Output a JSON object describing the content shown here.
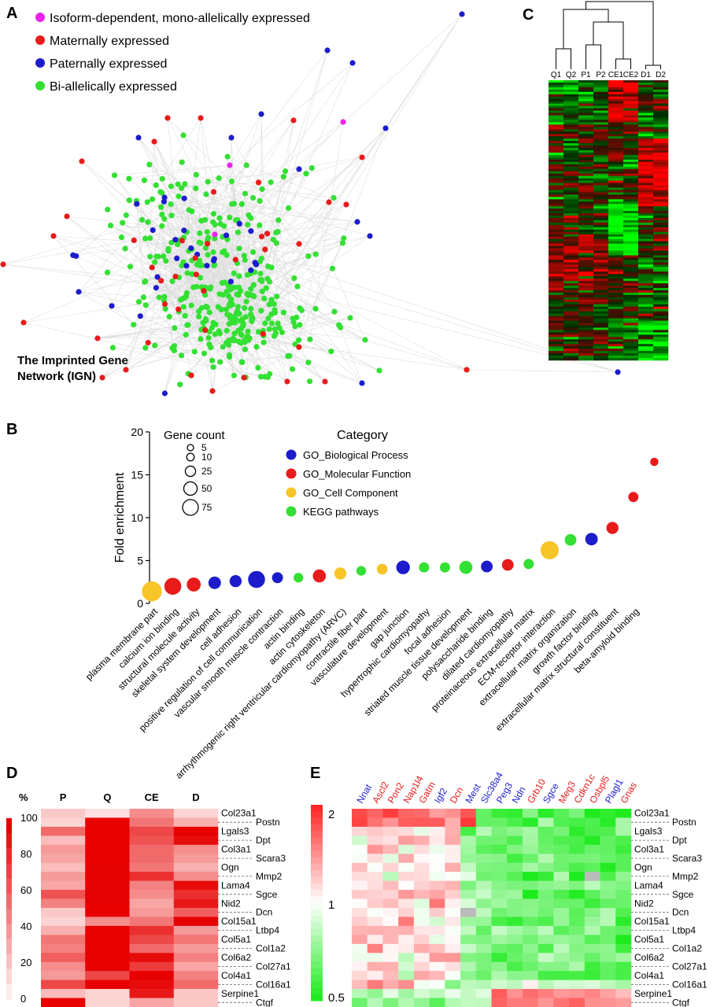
{
  "panel_labels": {
    "a": "A",
    "b": "B",
    "c": "C",
    "d": "D",
    "e": "E"
  },
  "panel_a": {
    "legend": [
      {
        "label": "Isoform-dependent, mono-allelically expressed",
        "color": "#ee22ee"
      },
      {
        "label": "Maternally expressed",
        "color": "#e81b1b"
      },
      {
        "label": "Paternally expressed",
        "color": "#1c1ccc"
      },
      {
        "label": "Bi-allelically expressed",
        "color": "#33e033"
      }
    ],
    "title_line1": "The Imprinted Gene",
    "title_line2": "Network (IGN)",
    "edge_color": "#d6d6d6"
  },
  "panel_c": {
    "columns": [
      "Q1",
      "Q2",
      "P1",
      "P2",
      "CE1",
      "CE2",
      "D1",
      "D2"
    ]
  },
  "chart_data": [
    {
      "type": "scatter",
      "panel": "B",
      "ylabel": "Fold enrichment",
      "ylim": [
        0,
        20
      ],
      "yticks": [
        0,
        5,
        10,
        15,
        20
      ],
      "size_legend_title": "Gene count",
      "size_legend": [
        5,
        10,
        25,
        50,
        75
      ],
      "category_legend_title": "Category",
      "categories": [
        {
          "name": "GO_Biological Process",
          "color": "#1c1ccc"
        },
        {
          "name": "GO_Molecular Function",
          "color": "#e81b1b"
        },
        {
          "name": "GO_Cell Component",
          "color": "#f7c528"
        },
        {
          "name": "KEGG pathways",
          "color": "#33e033"
        }
      ],
      "terms": [
        {
          "label": "plasma membrane part",
          "y": 1.4,
          "count": 75,
          "cat": 2
        },
        {
          "label": "calcium ion binding",
          "y": 2.0,
          "count": 50,
          "cat": 1
        },
        {
          "label": "structural molecule activity",
          "y": 2.2,
          "count": 30,
          "cat": 1
        },
        {
          "label": "skeletal system development",
          "y": 2.4,
          "count": 22,
          "cat": 0
        },
        {
          "label": "cell adhesion",
          "y": 2.6,
          "count": 20,
          "cat": 0
        },
        {
          "label": "positive regulation of cell communication",
          "y": 2.8,
          "count": 50,
          "cat": 0
        },
        {
          "label": "vascular smooth muscle contraction",
          "y": 3.0,
          "count": 15,
          "cat": 0
        },
        {
          "label": "actin binding",
          "y": 3.0,
          "count": 10,
          "cat": 3
        },
        {
          "label": "actin cytoskeleton",
          "y": 3.2,
          "count": 25,
          "cat": 1
        },
        {
          "label": "arrhythmogenic right ventricular cardiomyopathy (ARVC)",
          "y": 3.5,
          "count": 20,
          "cat": 2
        },
        {
          "label": "contractile fiber part",
          "y": 3.8,
          "count": 10,
          "cat": 3
        },
        {
          "label": "vasculature development",
          "y": 4.0,
          "count": 14,
          "cat": 2
        },
        {
          "label": "gap junction",
          "y": 4.2,
          "count": 28,
          "cat": 0
        },
        {
          "label": "hypertrophic cardiomyopathy",
          "y": 4.2,
          "count": 12,
          "cat": 3
        },
        {
          "label": "focal adhesion",
          "y": 4.2,
          "count": 12,
          "cat": 3
        },
        {
          "label": "striated muscle tissue development",
          "y": 4.2,
          "count": 25,
          "cat": 3
        },
        {
          "label": "polysaccharide binding",
          "y": 4.3,
          "count": 18,
          "cat": 0
        },
        {
          "label": "dilated cardiomyopathy",
          "y": 4.5,
          "count": 18,
          "cat": 1
        },
        {
          "label": "proteinaceous extracellular matrix",
          "y": 4.6,
          "count": 12,
          "cat": 3
        },
        {
          "label": "ECM-receptor interaction",
          "y": 6.2,
          "count": 60,
          "cat": 2
        },
        {
          "label": "extracellular matrix organization",
          "y": 7.4,
          "count": 18,
          "cat": 3
        },
        {
          "label": "growth factor binding",
          "y": 7.5,
          "count": 22,
          "cat": 0
        },
        {
          "label": "extracellular matrix structural constituent",
          "y": 8.8,
          "count": 20,
          "cat": 1
        },
        {
          "label": "beta-amyloid binding",
          "y": 12.4,
          "count": 12,
          "cat": 1
        },
        {
          "label": "",
          "y": 16.5,
          "count": 6,
          "cat": 1
        }
      ]
    },
    {
      "type": "heatmap",
      "panel": "D",
      "unit": "%",
      "columns": [
        "P",
        "Q",
        "CE",
        "D"
      ],
      "colorbar_ticks": [
        0,
        20,
        40,
        60,
        80,
        100
      ],
      "rows": [
        "Col23a1",
        "Postn",
        "Lgals3",
        "Dpt",
        "Col3a1",
        "Scara3",
        "Ogn",
        "Mmp2",
        "Lama4",
        "Sgce",
        "Nid2",
        "Dcn",
        "Col15a1",
        "Ltbp4",
        "Col5a1",
        "Col1a2",
        "Col6a2",
        "Col27a1",
        "Col4a1",
        "Col16a1",
        "Serpine1",
        "Ctgf"
      ],
      "values": [
        [
          15,
          5,
          40,
          10
        ],
        [
          10,
          100,
          50,
          25
        ],
        [
          55,
          100,
          70,
          100
        ],
        [
          20,
          100,
          65,
          95
        ],
        [
          35,
          100,
          55,
          40
        ],
        [
          30,
          100,
          55,
          35
        ],
        [
          20,
          100,
          50,
          25
        ],
        [
          35,
          100,
          80,
          40
        ],
        [
          30,
          100,
          45,
          95
        ],
        [
          65,
          100,
          40,
          80
        ],
        [
          45,
          100,
          30,
          90
        ],
        [
          15,
          100,
          35,
          60
        ],
        [
          10,
          40,
          50,
          100
        ],
        [
          25,
          100,
          80,
          35
        ],
        [
          50,
          100,
          70,
          50
        ],
        [
          45,
          100,
          55,
          35
        ],
        [
          60,
          100,
          95,
          45
        ],
        [
          40,
          100,
          75,
          30
        ],
        [
          35,
          70,
          100,
          45
        ],
        [
          70,
          100,
          95,
          55
        ],
        [
          20,
          10,
          90,
          15
        ],
        [
          100,
          10,
          30,
          15
        ]
      ]
    },
    {
      "type": "heatmap",
      "panel": "E",
      "columns": [
        {
          "name": "Nnat",
          "color": "#1c1ccc"
        },
        {
          "name": "Ascl2",
          "color": "#e81b1b"
        },
        {
          "name": "Pon2",
          "color": "#e81b1b"
        },
        {
          "name": "Nap1l4",
          "color": "#e81b1b"
        },
        {
          "name": "Gatm",
          "color": "#e81b1b"
        },
        {
          "name": "Igf2",
          "color": "#1c1ccc"
        },
        {
          "name": "Dcn",
          "color": "#e81b1b"
        },
        {
          "name": "Mest",
          "color": "#1c1ccc"
        },
        {
          "name": "Slc38a4",
          "color": "#1c1ccc"
        },
        {
          "name": "Peg3",
          "color": "#1c1ccc"
        },
        {
          "name": "Ndn",
          "color": "#1c1ccc"
        },
        {
          "name": "Grb10",
          "color": "#e81b1b"
        },
        {
          "name": "Sgce",
          "color": "#1c1ccc"
        },
        {
          "name": "Meg3",
          "color": "#e81b1b"
        },
        {
          "name": "Cdkn1c",
          "color": "#e81b1b"
        },
        {
          "name": "Osbpl5",
          "color": "#e81b1b"
        },
        {
          "name": "Plagl1",
          "color": "#1c1ccc"
        },
        {
          "name": "Gnas",
          "color": "#e81b1b"
        }
      ],
      "rows": [
        "Col23a1",
        "Postn",
        "Lgals3",
        "Dpt",
        "Col3a1",
        "Scara3",
        "Ogn",
        "Mmp2",
        "Lama4",
        "Sgce",
        "Nid2",
        "Dcn",
        "Col15a1",
        "Ltbp4",
        "Col5a1",
        "Col1a2",
        "Col6a2",
        "Col27a1",
        "Col4a1",
        "Col16a1",
        "Serpine1",
        "Ctgf"
      ],
      "colorbar_ticks": [
        "2",
        "1",
        "0.5"
      ],
      "missing_cells": [
        [
          7,
          15
        ],
        [
          11,
          7
        ]
      ]
    }
  ]
}
